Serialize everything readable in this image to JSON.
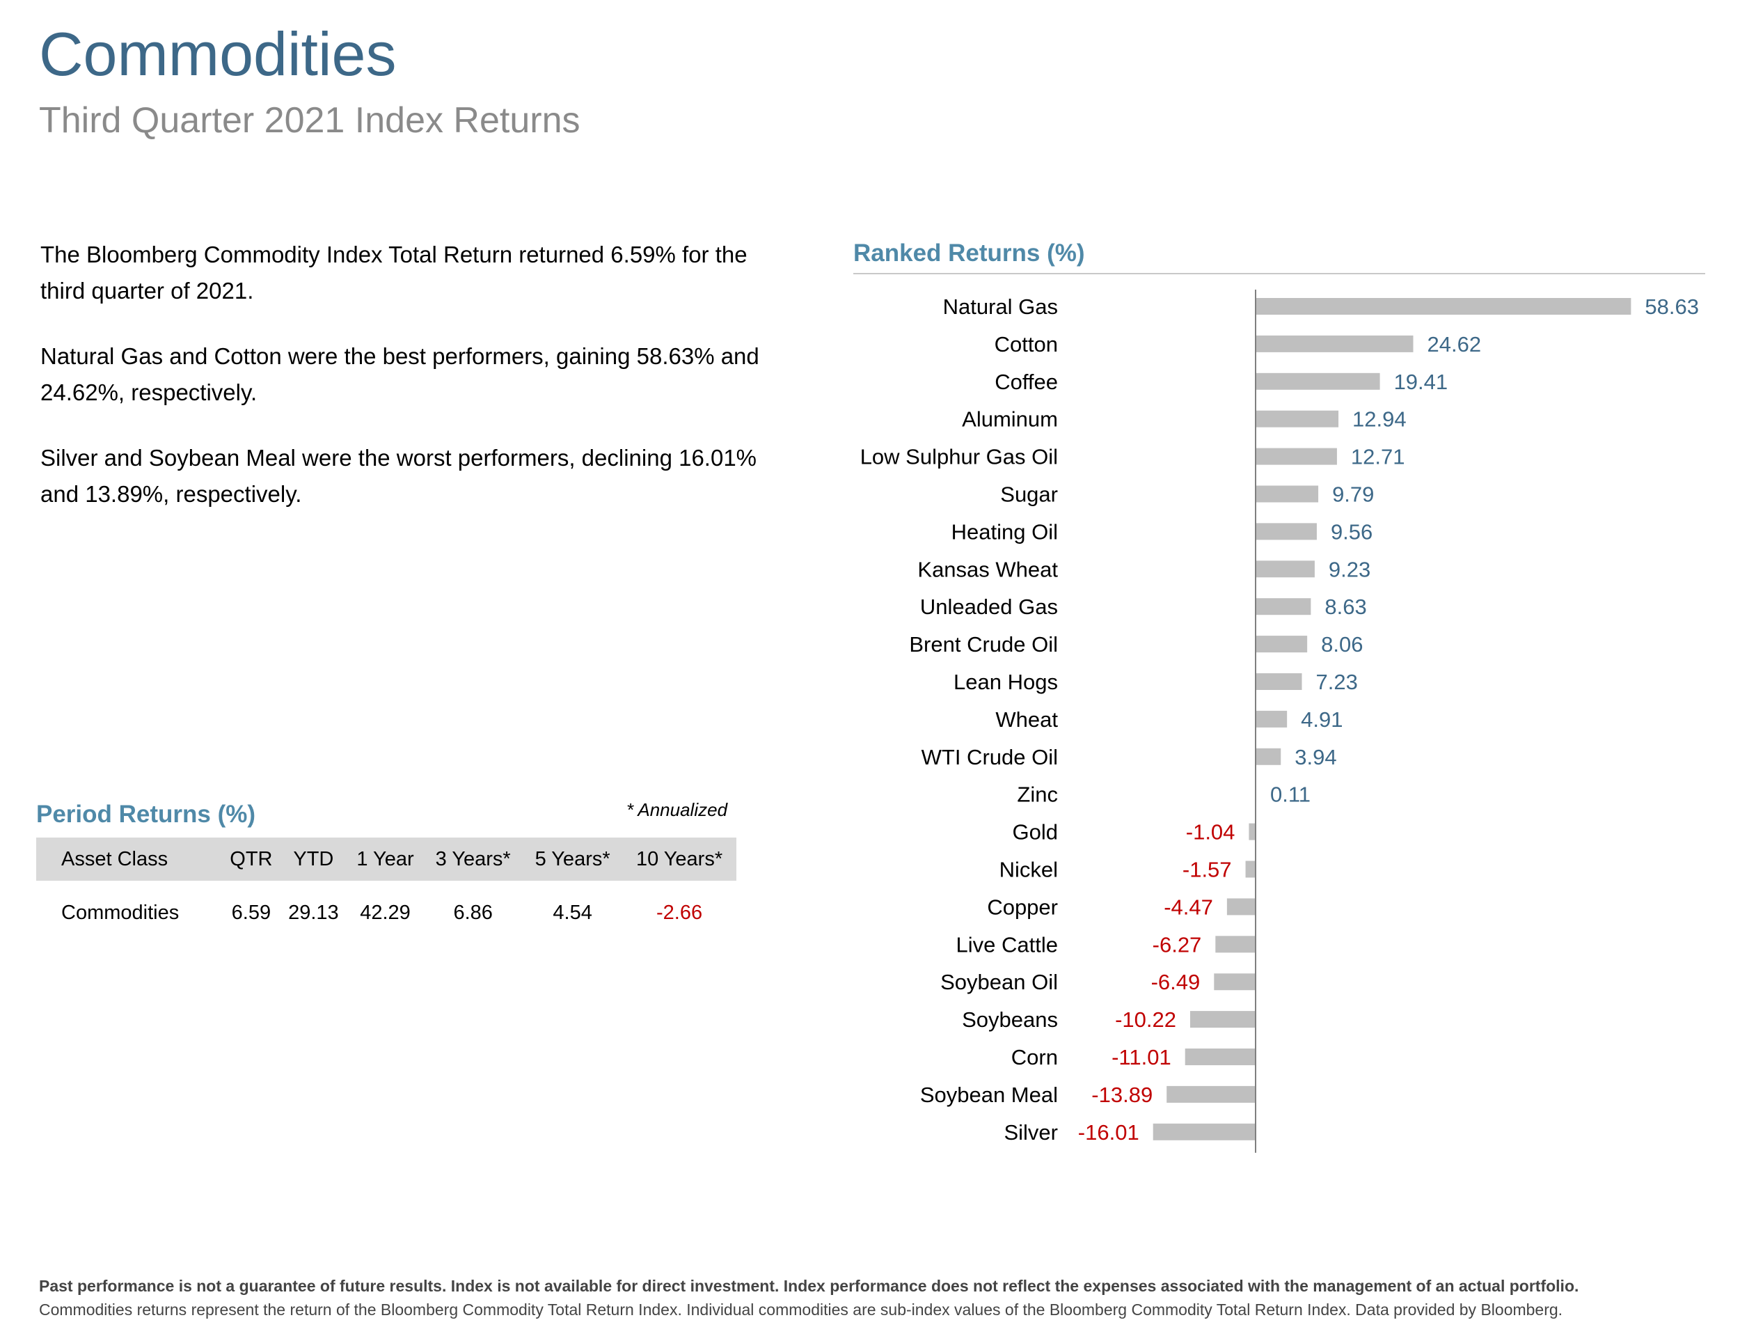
{
  "header": {
    "title": "Commodities",
    "subtitle": "Third Quarter 2021 Index Returns"
  },
  "summary": {
    "p1": "The Bloomberg Commodity Index Total Return returned 6.59% for the third quarter of 2021.",
    "p2": "Natural Gas and Cotton were the best performers, gaining 58.63% and 24.62%, respectively.",
    "p3": "Silver and Soybean Meal were the worst performers, declining 16.01% and 13.89%, respectively."
  },
  "period_returns": {
    "title": "Period Returns (%)",
    "note": "* Annualized",
    "headers": [
      "Asset Class",
      "QTR",
      "YTD",
      "1 Year",
      "3 Years*",
      "5 Years*",
      "10 Years*"
    ],
    "row": [
      "Commodities",
      "6.59",
      "29.13",
      "42.29",
      "6.86",
      "4.54",
      "-2.66"
    ]
  },
  "ranked": {
    "title": "Ranked Returns (%)"
  },
  "chart_data": {
    "type": "bar",
    "orientation": "horizontal",
    "title": "Ranked Returns (%)",
    "categories": [
      "Natural Gas",
      "Cotton",
      "Coffee",
      "Aluminum",
      "Low Sulphur Gas Oil",
      "Sugar",
      "Heating Oil",
      "Kansas Wheat",
      "Unleaded Gas",
      "Brent Crude Oil",
      "Lean Hogs",
      "Wheat",
      "WTI Crude Oil",
      "Zinc",
      "Gold",
      "Nickel",
      "Copper",
      "Live Cattle",
      "Soybean Oil",
      "Soybeans",
      "Corn",
      "Soybean Meal",
      "Silver"
    ],
    "values": [
      58.63,
      24.62,
      19.41,
      12.94,
      12.71,
      9.79,
      9.56,
      9.23,
      8.63,
      8.06,
      7.23,
      4.91,
      3.94,
      0.11,
      -1.04,
      -1.57,
      -4.47,
      -6.27,
      -6.49,
      -10.22,
      -11.01,
      -13.89,
      -16.01
    ],
    "labels": [
      "58.63",
      "24.62",
      "19.41",
      "12.94",
      "12.71",
      "9.79",
      "9.56",
      "9.23",
      "8.63",
      "8.06",
      "7.23",
      "4.91",
      "3.94",
      "0.11",
      "-1.04",
      "-1.57",
      "-4.47",
      "-6.27",
      "-6.49",
      "-10.22",
      "-11.01",
      "-13.89",
      "-16.01"
    ],
    "colors": {
      "bar": "#bfbfbf",
      "positive_label": "#3d6888",
      "negative_label": "#c00000",
      "axis": "#7f7f7f"
    }
  },
  "footer": {
    "bold": "Past performance is not a guarantee of future results. Index is not available for direct investment. Index performance does not reflect the expenses associated with the management of an actual portfolio.",
    "normal": "Commodities returns represent the return of the Bloomberg Commodity Total Return Index. Individual commodities are sub-index values of the Bloomberg Commodity Total Return Index. Data provided by Bloomberg."
  }
}
